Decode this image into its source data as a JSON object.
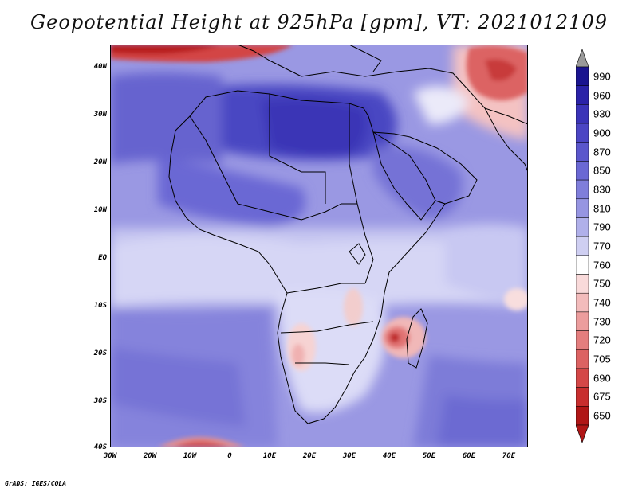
{
  "title": "Geopotential Height at 925hPa [gpm], VT: 2021012109",
  "credit": "GrADS: IGES/COLA",
  "lat_labels": [
    "40N",
    "30N",
    "20N",
    "10N",
    "EQ",
    "10S",
    "20S",
    "30S",
    "40S"
  ],
  "lon_labels": [
    "30W",
    "20W",
    "10W",
    "0",
    "10E",
    "20E",
    "30E",
    "40E",
    "50E",
    "60E",
    "70E"
  ],
  "colorbar": {
    "labels": [
      "990",
      "960",
      "930",
      "900",
      "870",
      "850",
      "830",
      "810",
      "790",
      "770",
      "760",
      "750",
      "740",
      "730",
      "720",
      "705",
      "690",
      "675",
      "650"
    ],
    "colors": [
      "#1a1490",
      "#2a22a8",
      "#3a33b8",
      "#4b45c4",
      "#5a56cc",
      "#6a68d4",
      "#7f7edb",
      "#9695e2",
      "#b0b0ea",
      "#cfcff2",
      "#ffffff",
      "#f9dada",
      "#f3bcbc",
      "#ec9d9d",
      "#e47e7e",
      "#dc6262",
      "#d44747",
      "#c82e2e",
      "#b01616"
    ],
    "over_color": "#9a9a9a",
    "under_color": "#b01616"
  }
}
